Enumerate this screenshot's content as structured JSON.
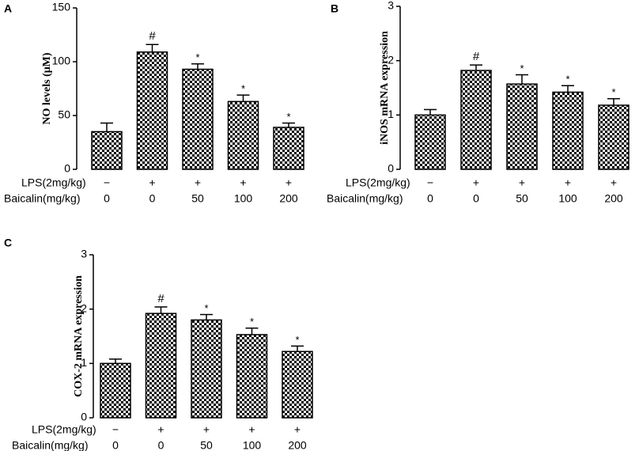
{
  "chart_data": [
    {
      "type": "bar",
      "panel": "A",
      "ylabel": "NO levels (μM)",
      "ylim": [
        0,
        150
      ],
      "yticks": [
        0,
        50,
        100,
        150
      ],
      "row_labels": [
        "LPS(2mg/kg)",
        "Baicalin(mg/kg)"
      ],
      "rows": [
        [
          "−",
          "+",
          "+",
          "+",
          "+"
        ],
        [
          "0",
          "0",
          "50",
          "100",
          "200"
        ]
      ],
      "values": [
        35,
        109,
        93,
        63,
        39
      ],
      "errors": [
        8,
        7,
        5,
        6,
        4
      ],
      "annotations": [
        null,
        "#",
        "*",
        "*",
        "*"
      ]
    },
    {
      "type": "bar",
      "panel": "B",
      "ylabel": "iNOS mRNA expression",
      "ylim": [
        0,
        3
      ],
      "yticks": [
        0,
        1,
        2,
        3
      ],
      "row_labels": [
        "LPS(2mg/kg)",
        "Baicalin(mg/kg)"
      ],
      "rows": [
        [
          "−",
          "+",
          "+",
          "+",
          "+"
        ],
        [
          "0",
          "0",
          "50",
          "100",
          "200"
        ]
      ],
      "values": [
        1.0,
        1.82,
        1.57,
        1.42,
        1.18
      ],
      "errors": [
        0.1,
        0.1,
        0.17,
        0.12,
        0.12
      ],
      "annotations": [
        null,
        "#",
        "*",
        "*",
        "*"
      ]
    },
    {
      "type": "bar",
      "panel": "C",
      "ylabel": "COX-2 mRNA expression",
      "ylim": [
        0,
        3
      ],
      "yticks": [
        0,
        1,
        2,
        3
      ],
      "row_labels": [
        "LPS(2mg/kg)",
        "Baicalin(mg/kg)"
      ],
      "rows": [
        [
          "−",
          "+",
          "+",
          "+",
          "+"
        ],
        [
          "0",
          "0",
          "50",
          "100",
          "200"
        ]
      ],
      "values": [
        1.0,
        1.92,
        1.8,
        1.53,
        1.22
      ],
      "errors": [
        0.08,
        0.12,
        0.1,
        0.12,
        0.1
      ],
      "annotations": [
        null,
        "#",
        "*",
        "*",
        "*"
      ]
    }
  ]
}
